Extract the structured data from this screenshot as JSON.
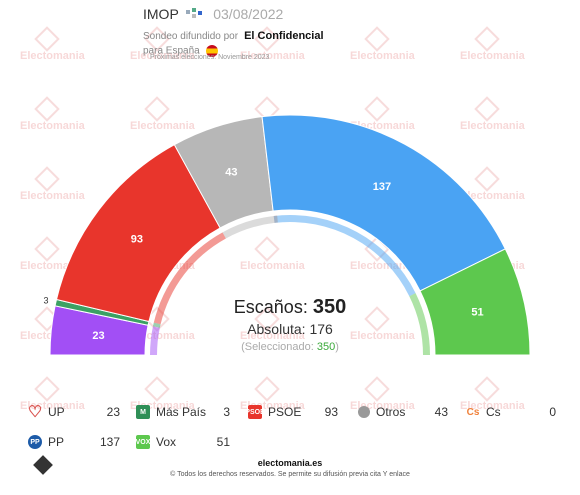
{
  "header": {
    "pollster": "IMOP",
    "date": "03/08/2022",
    "sub_prefix": "Sondeo difundido por",
    "media": "El Confidencial",
    "country_prefix": "para España",
    "next_elections": "Próximas elecciones: Noviembre 2023"
  },
  "watermark_text": "Electomania",
  "center": {
    "seats_label": "Escaños:",
    "seats_total": "350",
    "absolute_label": "Absoluta: 176",
    "selected_open": "(Seleccionado: ",
    "selected_value": "350",
    "selected_close": ")"
  },
  "chart_data": {
    "type": "parliament_semicircle",
    "total_seats": 350,
    "majority": 176,
    "series": [
      {
        "name": "UP",
        "seats": 23,
        "color": "#a24ff5"
      },
      {
        "name": "Más País",
        "seats": 3,
        "color": "#3ba163"
      },
      {
        "name": "PSOE",
        "seats": 93,
        "color": "#e8352c"
      },
      {
        "name": "Otros",
        "seats": 43,
        "color": "#b7b7b7"
      },
      {
        "name": "Cs",
        "seats": 0,
        "color": "#f0813a"
      },
      {
        "name": "PP",
        "seats": 137,
        "color": "#4aa3f3"
      },
      {
        "name": "Vox",
        "seats": 51,
        "color": "#5dc84e"
      }
    ]
  },
  "legend": [
    {
      "name": "UP",
      "value": "23",
      "icon": "heart-icon",
      "color": "#d9534f"
    },
    {
      "name": "Más País",
      "value": "3",
      "icon": "mas-pais-icon",
      "color": "#2f8f57"
    },
    {
      "name": "PSOE",
      "value": "93",
      "icon": "psoe-icon",
      "color": "#e8352c"
    },
    {
      "name": "Otros",
      "value": "43",
      "icon": "dot-icon",
      "color": "#999999"
    },
    {
      "name": "Cs",
      "value": "0",
      "icon": "cs-icon",
      "color": "#f0813a"
    },
    {
      "name": "PP",
      "value": "137",
      "icon": "pp-icon",
      "color": "#1d5ba8"
    },
    {
      "name": "Vox",
      "value": "51",
      "icon": "vox-icon",
      "color": "#5dc84e"
    }
  ],
  "footer": {
    "site": "electomania.es",
    "copyright": "© Todos los derechos reservados. Se permite su difusión previa cita Y enlace"
  }
}
